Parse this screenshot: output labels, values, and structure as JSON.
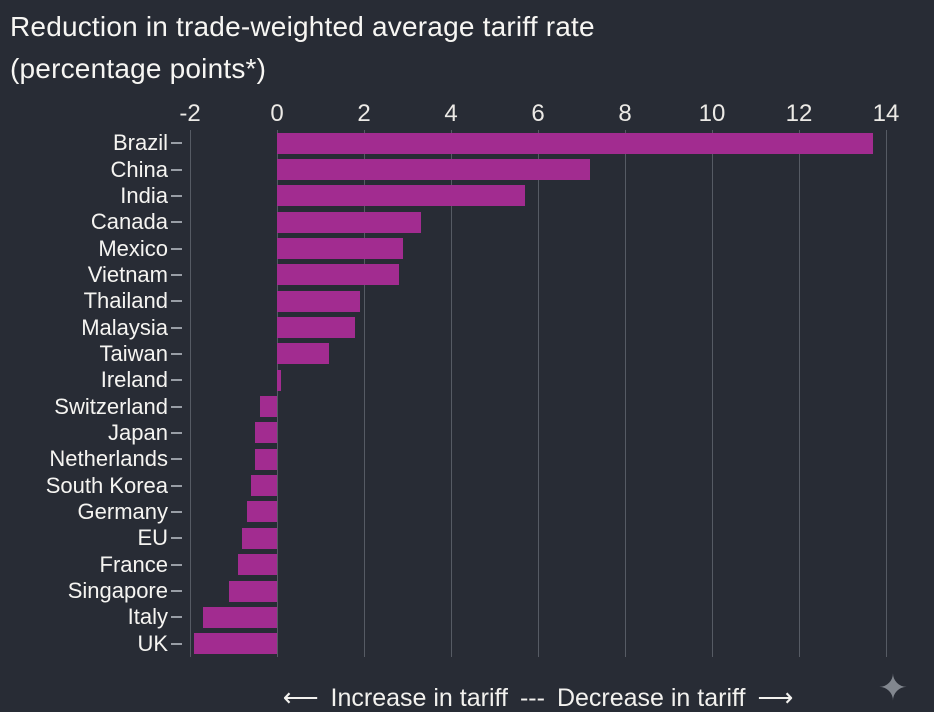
{
  "title": {
    "line1": "Reduction in trade-weighted average tariff rate",
    "line2": "(percentage points*)"
  },
  "footer": {
    "left_arrow": "⟵",
    "increase_label": "Increase in tariff",
    "separator": "---",
    "decrease_label": "Decrease in tariff",
    "right_arrow": "⟶",
    "sparkle_icon": "✦"
  },
  "colors": {
    "background": "#282c35",
    "bar": "#a22c90",
    "gridline": "#565b64",
    "text": "#f5f4f1"
  },
  "chart_data": {
    "type": "bar",
    "orientation": "horizontal",
    "title": "Reduction in trade-weighted average tariff rate (percentage points*)",
    "xlabel": "",
    "ylabel": "",
    "xlim": [
      -2,
      14
    ],
    "xticks": [
      -2,
      0,
      2,
      4,
      6,
      8,
      10,
      12,
      14
    ],
    "grid": true,
    "legend": "none",
    "bar_color": "#a22c90",
    "categories": [
      "Brazil",
      "China",
      "India",
      "Canada",
      "Mexico",
      "Vietnam",
      "Thailand",
      "Malaysia",
      "Taiwan",
      "Ireland",
      "Switzerland",
      "Japan",
      "Netherlands",
      "South Korea",
      "Germany",
      "EU",
      "France",
      "Singapore",
      "Italy",
      "UK"
    ],
    "values": [
      13.7,
      7.2,
      5.7,
      3.3,
      2.9,
      2.8,
      1.9,
      1.8,
      1.2,
      0.1,
      -0.4,
      -0.5,
      -0.5,
      -0.6,
      -0.7,
      -0.8,
      -0.9,
      -1.1,
      -1.7,
      -1.9
    ]
  }
}
